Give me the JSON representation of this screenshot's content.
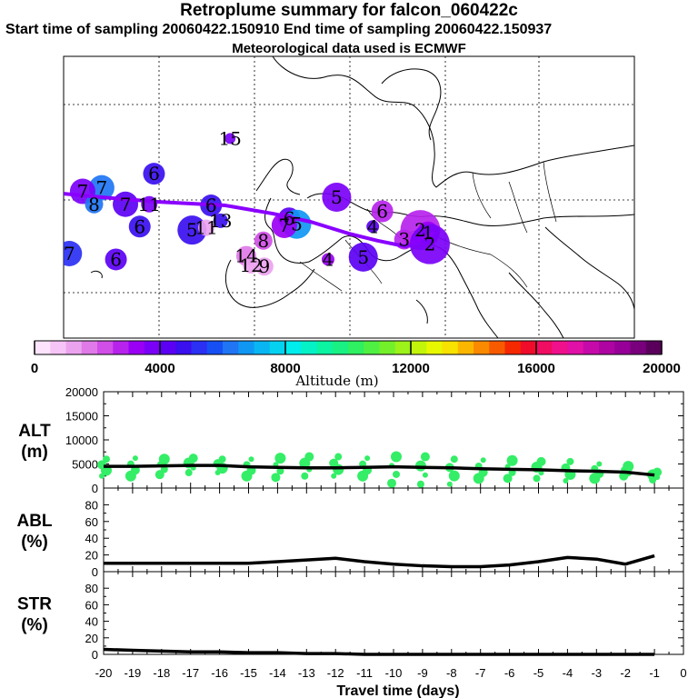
{
  "title": "Retroplume summary for falcon_060422c",
  "subtitle": "Start time of sampling 20060422.150910     End time of sampling 20060422.150937",
  "subtitle2": "Meteorological data used is ECMWF",
  "chart_data": [
    {
      "type": "scatter",
      "name": "map",
      "description_points_source": "cluster centroids labelled by days before sampling",
      "points": [
        {
          "label": "15",
          "lon": -12.5,
          "lat": 61.0,
          "alt": 3800
        },
        {
          "label": "6",
          "lon": -20.5,
          "lat": 58.0,
          "alt": 4500
        },
        {
          "label": "7",
          "lon": -26.0,
          "lat": 56.8,
          "alt": 6000
        },
        {
          "label": "7",
          "lon": -28.0,
          "lat": 56.5,
          "alt": 3600
        },
        {
          "label": "8",
          "lon": -26.8,
          "lat": 55.4,
          "alt": 6200
        },
        {
          "label": "7",
          "lon": -23.5,
          "lat": 55.4,
          "alt": 4400
        },
        {
          "label": "11",
          "lon": -21.0,
          "lat": 55.4,
          "alt": 3700
        },
        {
          "label": "6",
          "lon": -22.0,
          "lat": 53.5,
          "alt": 4900
        },
        {
          "label": "5",
          "lon": -16.5,
          "lat": 53.2,
          "alt": 4800
        },
        {
          "label": "11",
          "lon": -15.0,
          "lat": 53.4,
          "alt": 1200
        },
        {
          "label": "13",
          "lon": -13.5,
          "lat": 54.0,
          "alt": 4600
        },
        {
          "label": "6",
          "lon": -14.5,
          "lat": 55.3,
          "alt": 4900
        },
        {
          "label": "6",
          "lon": -6.3,
          "lat": 54.2,
          "alt": 4300
        },
        {
          "label": "5",
          "lon": -5.5,
          "lat": 53.7,
          "alt": 6500
        },
        {
          "label": "7",
          "lon": -6.8,
          "lat": 53.6,
          "alt": 3300
        },
        {
          "label": "8",
          "lon": -9.0,
          "lat": 52.3,
          "alt": 2000
        },
        {
          "label": "14",
          "lon": -10.8,
          "lat": 51.0,
          "alt": 1600
        },
        {
          "label": "12",
          "lon": -10.3,
          "lat": 50.2,
          "alt": 1000
        },
        {
          "label": "9",
          "lon": -8.9,
          "lat": 50.1,
          "alt": 1200
        },
        {
          "label": "4",
          "lon": -2.2,
          "lat": 50.7,
          "alt": 3300
        },
        {
          "label": "5",
          "lon": -1.3,
          "lat": 56.0,
          "alt": 3500
        },
        {
          "label": "6",
          "lon": 3.5,
          "lat": 54.8,
          "alt": 2900
        },
        {
          "label": "4",
          "lon": 2.5,
          "lat": 53.5,
          "alt": 4400
        },
        {
          "label": "3",
          "lon": 5.8,
          "lat": 52.4,
          "alt": 2800
        },
        {
          "label": "2",
          "lon": 7.5,
          "lat": 53.2,
          "alt": 2900
        },
        {
          "label": "1",
          "lon": 8.3,
          "lat": 53.0,
          "alt": 3100
        },
        {
          "label": "2",
          "lon": 8.5,
          "lat": 52.0,
          "alt": 3800
        },
        {
          "label": "7",
          "lon": -29.4,
          "lat": 51.2,
          "alt": 5200
        },
        {
          "label": "6",
          "lon": -24.5,
          "lat": 50.7,
          "alt": 4400
        },
        {
          "label": "5",
          "lon": 1.5,
          "lat": 50.9,
          "alt": 4400
        }
      ],
      "track_lon": [
        -30,
        -26,
        -20,
        -13,
        -8,
        -4,
        0,
        3,
        6,
        9
      ],
      "track_lat": [
        56.3,
        56.0,
        55.6,
        55.3,
        54.6,
        53.9,
        52.9,
        52.3,
        51.8,
        53.0
      ],
      "colorbar": {
        "ticks": [
          0,
          4000,
          8000,
          12000,
          16000,
          20000
        ],
        "label": "Altitude (m)",
        "colors": [
          "#fde3fc",
          "#f7c4f7",
          "#eba3ef",
          "#e07ae8",
          "#d14ee7",
          "#b723ed",
          "#9a00f5",
          "#7b00f8",
          "#5b00f4",
          "#3a0ff0",
          "#2a30f4",
          "#1650f4",
          "#1f75f4",
          "#1097f4",
          "#08b6f3",
          "#05d2f1",
          "#00edee",
          "#05f2c7",
          "#0cf3a2",
          "#19f183",
          "#2ef060",
          "#4ff041",
          "#74f02a",
          "#9cf219",
          "#c3f50b",
          "#e8f800",
          "#f8e200",
          "#fbb700",
          "#fa8a00",
          "#f85a00",
          "#f52800",
          "#f00b2b",
          "#f00d62",
          "#f0108c",
          "#e110a7",
          "#c60aaa",
          "#ad04a2",
          "#960098",
          "#78007c",
          "#5a005c"
        ]
      }
    },
    {
      "type": "line",
      "name": "ALT",
      "ylabel_line1": "ALT",
      "ylabel_line2": "(m)",
      "ylim": [
        0,
        20000
      ],
      "yticks": [
        0,
        5000,
        10000,
        15000,
        20000
      ],
      "x": [
        -20,
        -19,
        -18,
        -17,
        -16,
        -15,
        -14,
        -13,
        -12,
        -11,
        -10,
        -9,
        -8,
        -7,
        -6,
        -5,
        -4,
        -3,
        -2,
        -1
      ],
      "values": [
        4500,
        4500,
        4600,
        4700,
        4700,
        4400,
        4300,
        4200,
        4200,
        4300,
        4400,
        4300,
        4200,
        4000,
        3900,
        3800,
        3600,
        3500,
        3300,
        2700
      ],
      "spread": [
        [
          2500,
          6000
        ],
        [
          2500,
          6200
        ],
        [
          2800,
          6000
        ],
        [
          3200,
          6200
        ],
        [
          3200,
          6000
        ],
        [
          2500,
          6000
        ],
        [
          2200,
          6200
        ],
        [
          2500,
          6500
        ],
        [
          2500,
          6500
        ],
        [
          2500,
          6200
        ],
        [
          1000,
          6500
        ],
        [
          800,
          6500
        ],
        [
          800,
          6000
        ],
        [
          2000,
          5800
        ],
        [
          2000,
          5700
        ],
        [
          2000,
          5500
        ],
        [
          1500,
          5500
        ],
        [
          2000,
          5000
        ],
        [
          2500,
          4500
        ],
        [
          1700,
          3300
        ]
      ]
    },
    {
      "type": "line",
      "name": "ABL",
      "ylabel_line1": "ABL",
      "ylabel_line2": "(%)",
      "ylim": [
        0,
        100
      ],
      "yticks": [
        0,
        20,
        40,
        60,
        80
      ],
      "x": [
        -20,
        -19,
        -18,
        -17,
        -16,
        -15,
        -14,
        -13,
        -12,
        -11,
        -10,
        -9,
        -8,
        -7,
        -6,
        -5,
        -4,
        -3,
        -2,
        -1
      ],
      "values": [
        10,
        10,
        10,
        10,
        10,
        10,
        12,
        14,
        16,
        12,
        9,
        7,
        6,
        6,
        8,
        12,
        17,
        15,
        9,
        19
      ]
    },
    {
      "type": "line",
      "name": "STR",
      "ylabel_line1": "STR",
      "ylabel_line2": "(%)",
      "ylim": [
        0,
        100
      ],
      "yticks": [
        0,
        20,
        40,
        60,
        80
      ],
      "x": [
        -20,
        -19,
        -18,
        -17,
        -16,
        -15,
        -14,
        -13,
        -12,
        -11,
        -10,
        -9,
        -8,
        -7,
        -6,
        -5,
        -4,
        -3,
        -2,
        -1
      ],
      "values": [
        6,
        5,
        4,
        3,
        3,
        2,
        2,
        1,
        1,
        0,
        0,
        0,
        0,
        0,
        0,
        0,
        0,
        0,
        0,
        0
      ],
      "xlabel": "Travel time (days)",
      "xticks": [
        -20,
        -19,
        -18,
        -17,
        -16,
        -15,
        -14,
        -13,
        -12,
        -11,
        -10,
        -9,
        -8,
        -7,
        -6,
        -5,
        -4,
        -3,
        -2,
        -1,
        0
      ],
      "xlim": [
        -20,
        0
      ]
    }
  ]
}
